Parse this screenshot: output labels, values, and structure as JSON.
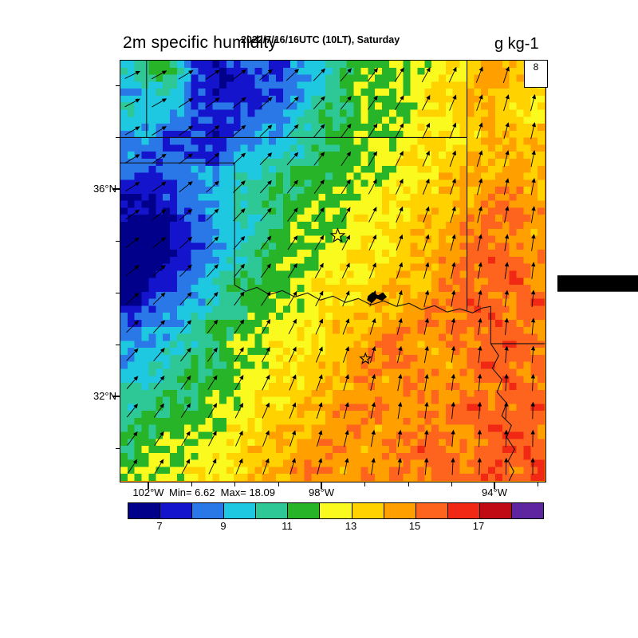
{
  "header": {
    "datetime_line": "2022/7/16/16UTC (10LT), Saturday",
    "model_line": "FV3M0B2L1_GFS025",
    "variable_title": "2m specific humidity",
    "units": "g kg-1"
  },
  "axes": {
    "lat_labels": [
      "36°N",
      "32°N"
    ],
    "lon_labels": [
      "102°W",
      "98°W",
      "94°W"
    ],
    "minmax_text": "Min= 6.62  Max= 18.09"
  },
  "reference_arrow": {
    "value": "8"
  },
  "chart_data": {
    "type": "heatmap",
    "title": "2m specific humidity",
    "units": "g kg-1",
    "valid_time": "2022/7/16/16UTC (10LT), Saturday",
    "model": "FV3M0B2L1_GFS025",
    "min": 6.62,
    "max": 18.09,
    "lat_axis_labels": [
      "36°N",
      "32°N"
    ],
    "lon_axis_labels": [
      "102°W",
      "98°W",
      "94°W"
    ],
    "colorbar": {
      "edges": [
        6,
        7,
        8,
        9,
        10,
        11,
        12,
        13,
        14,
        15,
        16,
        17,
        18,
        19
      ],
      "colors": [
        "#00008b",
        "#1414cd",
        "#2a78e8",
        "#1ec8e0",
        "#2ec896",
        "#28b428",
        "#fafa1e",
        "#ffd200",
        "#ffa000",
        "#ff641e",
        "#f02814",
        "#c00a14",
        "#5f249f"
      ],
      "tick_labels": [
        "7",
        "9",
        "11",
        "13",
        "15",
        "17"
      ]
    },
    "humidity_grid_g_per_kg": {
      "nx": 20,
      "ny": 20,
      "order": "north_to_south_rows",
      "values": [
        [
          10,
          11,
          11,
          8,
          7,
          8,
          8,
          8,
          9,
          10,
          11,
          12,
          12,
          12,
          12,
          13,
          13,
          15,
          14,
          14
        ],
        [
          9,
          10,
          10,
          8,
          7,
          7,
          8,
          8,
          9,
          10,
          11,
          12,
          12,
          12,
          13,
          13,
          14,
          14,
          14,
          13
        ],
        [
          10,
          9,
          9,
          8,
          8,
          8,
          8,
          9,
          10,
          11,
          11,
          12,
          12,
          12,
          13,
          13,
          14,
          14,
          13,
          13
        ],
        [
          9,
          9,
          8,
          8,
          7,
          8,
          9,
          9,
          10,
          11,
          11,
          12,
          12,
          12,
          13,
          13,
          13,
          14,
          14,
          14
        ],
        [
          9,
          8,
          8,
          8,
          8,
          9,
          9,
          10,
          10,
          11,
          11,
          12,
          12,
          13,
          13,
          13,
          14,
          14,
          14,
          14
        ],
        [
          8,
          8,
          8,
          9,
          9,
          10,
          10,
          11,
          11,
          11,
          12,
          12,
          12,
          13,
          13,
          14,
          14,
          14,
          15,
          14
        ],
        [
          7,
          7,
          8,
          9,
          9,
          10,
          11,
          11,
          11,
          12,
          12,
          12,
          13,
          13,
          13,
          14,
          14,
          15,
          15,
          14
        ],
        [
          7,
          6,
          7,
          8,
          9,
          10,
          10,
          11,
          12,
          12,
          12,
          13,
          13,
          13,
          14,
          14,
          15,
          15,
          15,
          15
        ],
        [
          6,
          6,
          7,
          8,
          9,
          10,
          11,
          11,
          12,
          12,
          12,
          13,
          13,
          14,
          14,
          14,
          15,
          15,
          15,
          14
        ],
        [
          6,
          6,
          7,
          8,
          9,
          10,
          11,
          12,
          12,
          12,
          13,
          13,
          13,
          14,
          14,
          15,
          15,
          16,
          15,
          15
        ],
        [
          6,
          7,
          8,
          9,
          10,
          11,
          11,
          12,
          12,
          13,
          13,
          13,
          14,
          14,
          14,
          15,
          15,
          15,
          16,
          15
        ],
        [
          7,
          8,
          9,
          9,
          10,
          11,
          12,
          12,
          12,
          13,
          13,
          14,
          14,
          14,
          15,
          15,
          16,
          15,
          15,
          16
        ],
        [
          8,
          9,
          9,
          10,
          11,
          11,
          12,
          12,
          13,
          13,
          14,
          14,
          14,
          15,
          15,
          15,
          15,
          16,
          15,
          15
        ],
        [
          9,
          9,
          10,
          10,
          11,
          12,
          12,
          13,
          13,
          13,
          14,
          14,
          16,
          15,
          14,
          15,
          15,
          15,
          16,
          15
        ],
        [
          9,
          10,
          10,
          11,
          11,
          12,
          12,
          13,
          13,
          14,
          14,
          15,
          15,
          15,
          15,
          14,
          15,
          16,
          15,
          15
        ],
        [
          10,
          10,
          11,
          11,
          12,
          12,
          13,
          13,
          13,
          14,
          14,
          15,
          14,
          15,
          15,
          15,
          15,
          15,
          16,
          15
        ],
        [
          10,
          11,
          11,
          11,
          12,
          12,
          13,
          13,
          14,
          14,
          15,
          15,
          15,
          14,
          15,
          15,
          16,
          15,
          15,
          16
        ],
        [
          11,
          11,
          12,
          12,
          12,
          13,
          13,
          14,
          14,
          14,
          15,
          15,
          14,
          15,
          15,
          15,
          15,
          16,
          16,
          15
        ],
        [
          11,
          12,
          12,
          12,
          13,
          13,
          14,
          14,
          14,
          15,
          15,
          14,
          15,
          15,
          16,
          15,
          15,
          15,
          16,
          16
        ],
        [
          12,
          12,
          12,
          13,
          13,
          13,
          14,
          14,
          15,
          15,
          14,
          15,
          15,
          15,
          15,
          16,
          15,
          16,
          15,
          16
        ]
      ]
    },
    "wind": {
      "reference_speed": "8",
      "nx": 10,
      "ny": 10,
      "direction_deg_cw_from_north": [
        [
          66,
          62,
          57,
          52,
          46,
          40,
          33,
          26,
          20,
          15
        ],
        [
          63,
          59,
          54,
          48,
          43,
          37,
          30,
          23,
          17,
          13
        ],
        [
          60,
          56,
          51,
          45,
          40,
          33,
          27,
          20,
          15,
          11
        ],
        [
          57,
          53,
          47,
          42,
          36,
          30,
          23,
          17,
          13,
          9
        ],
        [
          54,
          49,
          44,
          38,
          32,
          26,
          20,
          14,
          10,
          7
        ],
        [
          50,
          45,
          40,
          34,
          28,
          22,
          16,
          11,
          8,
          5
        ],
        [
          46,
          41,
          36,
          30,
          24,
          18,
          13,
          9,
          6,
          4
        ],
        [
          42,
          37,
          32,
          26,
          20,
          15,
          10,
          7,
          4,
          2
        ],
        [
          38,
          33,
          28,
          22,
          17,
          12,
          8,
          5,
          2,
          1
        ],
        [
          34,
          29,
          24,
          19,
          14,
          10,
          6,
          3,
          1,
          0
        ]
      ]
    }
  }
}
